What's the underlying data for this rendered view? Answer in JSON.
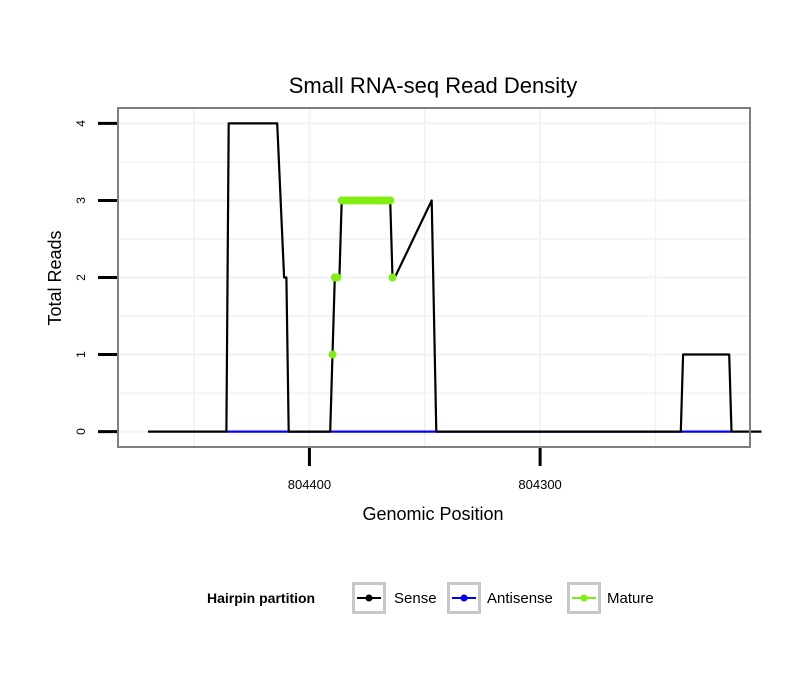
{
  "chart_data": {
    "type": "line",
    "title": "Small RNA-seq Read Density",
    "xlabel": "Genomic Position",
    "ylabel": "Total Reads",
    "xlim": [
      804483,
      804209
    ],
    "ylim": [
      -0.2,
      4.2
    ],
    "x_ticks": [
      804400,
      804300
    ],
    "x_tick_labels": [
      "804400",
      "804300"
    ],
    "y_ticks": [
      0,
      1,
      2,
      3,
      4
    ],
    "y_tick_labels": [
      "0",
      "1",
      "2",
      "3",
      "4"
    ],
    "grid": true,
    "legend_position": "bottom",
    "legend_title": "Hairpin partition",
    "series": [
      {
        "name": "Sense",
        "color": "#000000",
        "x": [
          804470,
          804436,
          804435,
          804414,
          804411,
          804410,
          804409,
          804391,
          804390,
          804389,
          804388,
          804387,
          804386,
          804385,
          804384,
          804383,
          804382,
          804381,
          804380,
          804379,
          804378,
          804377,
          804376,
          804375,
          804374,
          804373,
          804372,
          804371,
          804370,
          804369,
          804368,
          804367,
          804366,
          804365,
          804364,
          804363,
          804347,
          804345,
          804239,
          804238,
          804218,
          804217,
          804204
        ],
        "y": [
          0,
          0,
          4,
          4,
          2,
          2,
          0,
          0,
          1,
          2,
          2,
          2,
          3,
          3,
          3,
          3,
          3,
          3,
          3,
          3,
          3,
          3,
          3,
          3,
          3,
          3,
          3,
          3,
          3,
          3,
          3,
          3,
          3,
          3,
          2,
          2,
          3,
          0,
          0,
          1,
          1,
          0,
          0
        ]
      },
      {
        "name": "Antisense",
        "color": "#0000ff",
        "x": [
          804436,
          804409,
          804388,
          804363,
          804238,
          804217
        ],
        "y": [
          0,
          0,
          0,
          0,
          0,
          0
        ]
      },
      {
        "name": "Mature",
        "color": "#80ee10",
        "x": [
          804390,
          804389,
          804388,
          804386,
          804385,
          804384,
          804383,
          804382,
          804381,
          804380,
          804379,
          804378,
          804377,
          804376,
          804375,
          804374,
          804373,
          804372,
          804371,
          804370,
          804369,
          804368,
          804367,
          804366,
          804365,
          804364
        ],
        "y": [
          1,
          2,
          2,
          3,
          3,
          3,
          3,
          3,
          3,
          3,
          3,
          3,
          3,
          3,
          3,
          3,
          3,
          3,
          3,
          3,
          3,
          3,
          3,
          3,
          3,
          2
        ]
      }
    ]
  }
}
